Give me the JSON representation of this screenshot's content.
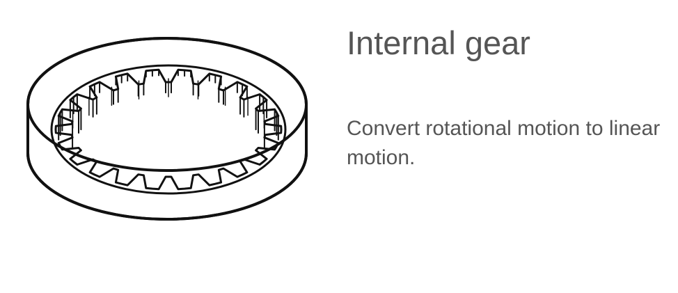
{
  "panel": {
    "title": "Internal gear",
    "description": "Convert rotational motion to linear motion."
  },
  "illustration": {
    "icon": "internal-gear-icon",
    "stroke_color": "#111111",
    "teeth": 22
  }
}
